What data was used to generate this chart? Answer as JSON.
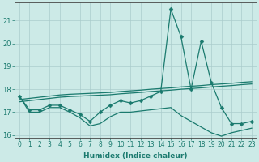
{
  "xlabel": "Humidex (Indice chaleur)",
  "background_color": "#cceae7",
  "grid_color": "#aacccc",
  "line_color": "#1a7a6e",
  "x": [
    0,
    1,
    2,
    3,
    4,
    5,
    6,
    7,
    8,
    9,
    10,
    11,
    12,
    13,
    14,
    15,
    16,
    17,
    18,
    19,
    20,
    21,
    22,
    23
  ],
  "y_main": [
    17.7,
    17.1,
    17.1,
    17.3,
    17.3,
    17.1,
    16.9,
    16.6,
    17.0,
    17.3,
    17.5,
    17.4,
    17.5,
    17.7,
    17.9,
    21.5,
    20.3,
    18.0,
    20.1,
    18.3,
    17.2,
    16.5,
    16.5,
    16.6
  ],
  "y_trend1": [
    17.55,
    17.6,
    17.65,
    17.7,
    17.75,
    17.78,
    17.8,
    17.82,
    17.84,
    17.86,
    17.9,
    17.93,
    17.96,
    18.0,
    18.03,
    18.06,
    18.1,
    18.13,
    18.16,
    18.2,
    18.23,
    18.26,
    18.3,
    18.33
  ],
  "y_trend2": [
    17.45,
    17.5,
    17.55,
    17.6,
    17.65,
    17.68,
    17.7,
    17.72,
    17.74,
    17.76,
    17.8,
    17.83,
    17.86,
    17.9,
    17.93,
    17.96,
    18.0,
    18.03,
    18.06,
    18.1,
    18.13,
    18.16,
    18.2,
    18.23
  ],
  "y_lower": [
    17.7,
    17.0,
    17.0,
    17.2,
    17.2,
    17.0,
    16.75,
    16.4,
    16.5,
    16.8,
    17.0,
    17.0,
    17.05,
    17.1,
    17.15,
    17.2,
    16.85,
    16.6,
    16.35,
    16.1,
    15.95,
    16.1,
    16.2,
    16.3
  ],
  "xlim": [
    -0.5,
    23.5
  ],
  "ylim": [
    15.9,
    21.8
  ],
  "yticks": [
    16,
    17,
    18,
    19,
    20,
    21
  ],
  "xticks": [
    0,
    1,
    2,
    3,
    4,
    5,
    6,
    7,
    8,
    9,
    10,
    11,
    12,
    13,
    14,
    15,
    16,
    17,
    18,
    19,
    20,
    21,
    22,
    23
  ],
  "markersize": 2.5,
  "linewidth": 0.9,
  "tick_fontsize": 5.5,
  "xlabel_fontsize": 6.5
}
